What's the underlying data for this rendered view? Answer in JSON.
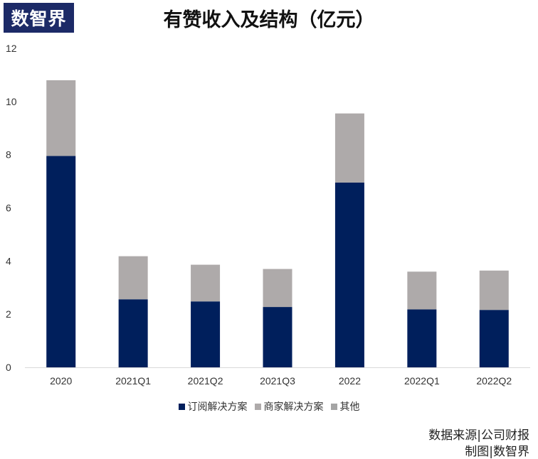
{
  "brand": {
    "logo_text": "数智界"
  },
  "chart_data": {
    "type": "bar",
    "stacked": true,
    "title": "有赞收入及结构（亿元）",
    "categories": [
      "2020",
      "2021Q1",
      "2021Q2",
      "2021Q3",
      "2022",
      "2022Q1",
      "2022Q2"
    ],
    "series": [
      {
        "name": "订阅解决方案",
        "color": "#001f5c",
        "values": [
          7.95,
          2.56,
          2.48,
          2.27,
          6.95,
          2.18,
          2.16
        ]
      },
      {
        "name": "商家解决方案",
        "color": "#aeaaaa",
        "values": [
          2.85,
          1.62,
          1.38,
          1.43,
          2.6,
          1.42,
          1.48
        ]
      },
      {
        "name": "其他",
        "color": "#a5a5a5",
        "values": [
          0,
          0,
          0,
          0,
          0,
          0,
          0
        ]
      }
    ],
    "yticks": [
      0,
      2,
      4,
      6,
      8,
      10,
      12
    ],
    "ylim": [
      0,
      12
    ],
    "xlabel": "",
    "ylabel": "",
    "legend_position": "bottom"
  },
  "footer": {
    "source": "数据来源|公司财报",
    "credit": "制图|数智界"
  }
}
